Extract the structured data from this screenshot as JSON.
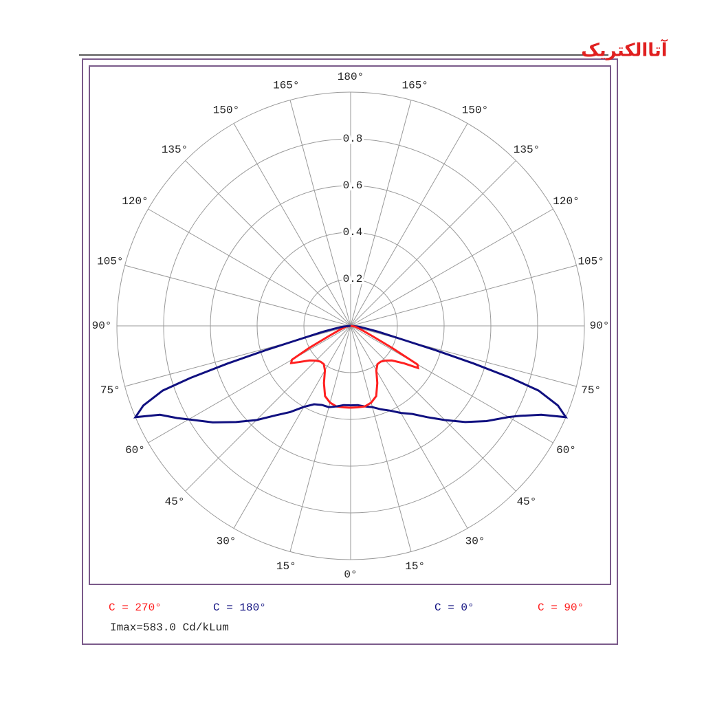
{
  "logo": "آتاالکتریک",
  "chart_data": {
    "type": "polar",
    "rlim": [
      0,
      1
    ],
    "rticks": [
      0.2,
      0.4,
      0.6,
      0.8
    ],
    "angle_ticks": [
      {
        "value": 0,
        "label": "0°"
      },
      {
        "value": 15,
        "label": "15°"
      },
      {
        "value": 30,
        "label": "30°"
      },
      {
        "value": 45,
        "label": "45°"
      },
      {
        "value": 60,
        "label": "60°"
      },
      {
        "value": 75,
        "label": "75°"
      },
      {
        "value": 90,
        "label": "90°"
      },
      {
        "value": 105,
        "label": "105°"
      },
      {
        "value": 120,
        "label": "120°"
      },
      {
        "value": 135,
        "label": "135°"
      },
      {
        "value": 150,
        "label": "150°"
      },
      {
        "value": 165,
        "label": "165°"
      },
      {
        "value": 180,
        "label": "180°"
      }
    ],
    "series": [
      {
        "name": "C = 270°",
        "color": "#ff2020",
        "side": "left",
        "x": [
          0,
          5,
          10,
          15,
          20,
          25,
          30,
          35,
          40,
          45,
          50,
          55,
          58,
          60,
          62,
          65,
          70,
          80,
          90
        ],
        "values": [
          0.35,
          0.35,
          0.35,
          0.34,
          0.32,
          0.27,
          0.22,
          0.2,
          0.2,
          0.21,
          0.23,
          0.27,
          0.3,
          0.29,
          0.2,
          0.1,
          0.05,
          0.02,
          0
        ]
      },
      {
        "name": "C = 180°",
        "color": "#101080",
        "side": "left",
        "x": [
          0,
          5,
          10,
          15,
          20,
          25,
          30,
          35,
          40,
          45,
          50,
          55,
          60,
          62,
          65,
          67,
          69,
          71,
          72,
          73,
          74,
          75,
          78,
          80,
          85,
          90
        ],
        "values": [
          0.34,
          0.34,
          0.35,
          0.36,
          0.36,
          0.37,
          0.4,
          0.45,
          0.5,
          0.57,
          0.64,
          0.72,
          0.8,
          0.84,
          0.9,
          1.0,
          0.95,
          0.85,
          0.72,
          0.55,
          0.38,
          0.25,
          0.12,
          0.07,
          0.03,
          0
        ]
      },
      {
        "name": "C = 0°",
        "color": "#101080",
        "side": "right",
        "x": [
          0,
          5,
          10,
          15,
          20,
          25,
          30,
          35,
          40,
          45,
          50,
          55,
          60,
          62,
          65,
          67,
          69,
          71,
          72,
          73,
          74,
          75,
          78,
          80,
          85,
          90
        ],
        "values": [
          0.34,
          0.34,
          0.35,
          0.36,
          0.38,
          0.4,
          0.43,
          0.46,
          0.51,
          0.57,
          0.64,
          0.71,
          0.78,
          0.82,
          0.9,
          1.0,
          0.95,
          0.85,
          0.72,
          0.55,
          0.38,
          0.25,
          0.12,
          0.07,
          0.03,
          0
        ]
      },
      {
        "name": "C = 90°",
        "color": "#ff2020",
        "side": "right",
        "x": [
          0,
          5,
          10,
          15,
          20,
          25,
          30,
          35,
          40,
          45,
          50,
          55,
          58,
          60,
          62,
          65,
          70,
          80,
          90
        ],
        "values": [
          0.35,
          0.35,
          0.35,
          0.34,
          0.32,
          0.27,
          0.22,
          0.2,
          0.2,
          0.21,
          0.23,
          0.28,
          0.34,
          0.33,
          0.2,
          0.1,
          0.05,
          0.02,
          0
        ]
      }
    ],
    "annotation": "Imax=583.0 Cd/kLum"
  }
}
